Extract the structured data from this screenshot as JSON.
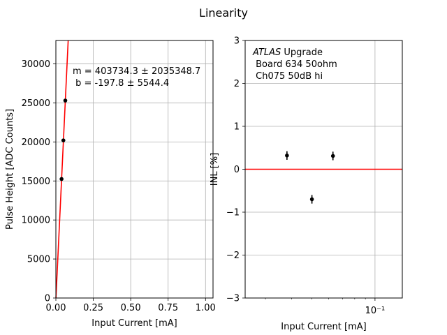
{
  "figure": {
    "suptitle": "Linearity"
  },
  "chart_data": [
    {
      "type": "scatter",
      "xlabel": "Input Current [mA]",
      "ylabel": "Pulse Height [ADC Counts]",
      "xlim": [
        0,
        1.05
      ],
      "ylim": [
        0,
        33000
      ],
      "xticks": [
        0.0,
        0.25,
        0.5,
        0.75,
        1.0
      ],
      "xtick_labels": [
        "0.00",
        "0.25",
        "0.50",
        "0.75",
        "1.00"
      ],
      "yticks": [
        0,
        5000,
        10000,
        15000,
        20000,
        25000,
        30000
      ],
      "ytick_labels": [
        "0",
        "5000",
        "10000",
        "15000",
        "20000",
        "25000",
        "30000"
      ],
      "grid": true,
      "points": [
        {
          "x": 0.038,
          "y": 15250
        },
        {
          "x": 0.05,
          "y": 20200
        },
        {
          "x": 0.063,
          "y": 25300
        }
      ],
      "fit_line": {
        "slope": 403734.3,
        "intercept": -197.8,
        "color": "#ff0000"
      },
      "annotation": [
        "m = 403734.3 ± 2035348.7",
        " b = -197.8 ± 5544.4"
      ],
      "point_color": "#000000"
    },
    {
      "type": "scatter",
      "xscale": "log",
      "xlabel": "Input Current [mA]",
      "ylabel": "INL [%]",
      "xlim": [
        0.024,
        0.135
      ],
      "ylim": [
        -3,
        3
      ],
      "yticks": [
        -3,
        -2,
        -1,
        0,
        1,
        2,
        3
      ],
      "ytick_labels": [
        "−3",
        "−2",
        "−1",
        "0",
        "1",
        "2",
        "3"
      ],
      "xticks": [
        0.1
      ],
      "xtick_labels": [
        "10⁻¹"
      ],
      "grid": true,
      "points": [
        {
          "x": 0.038,
          "y": 0.32,
          "yerr": 0.1
        },
        {
          "x": 0.05,
          "y": -0.7,
          "yerr": 0.1
        },
        {
          "x": 0.063,
          "y": 0.31,
          "yerr": 0.1
        }
      ],
      "reference_line": {
        "y": 0,
        "color": "#ff0000"
      },
      "annotation": {
        "atlas": "ATLAS",
        "upgrade": " Upgrade",
        "line2": " Board 634 50ohm",
        "line3": " Ch075 50dB hi"
      },
      "point_color": "#000000"
    }
  ]
}
